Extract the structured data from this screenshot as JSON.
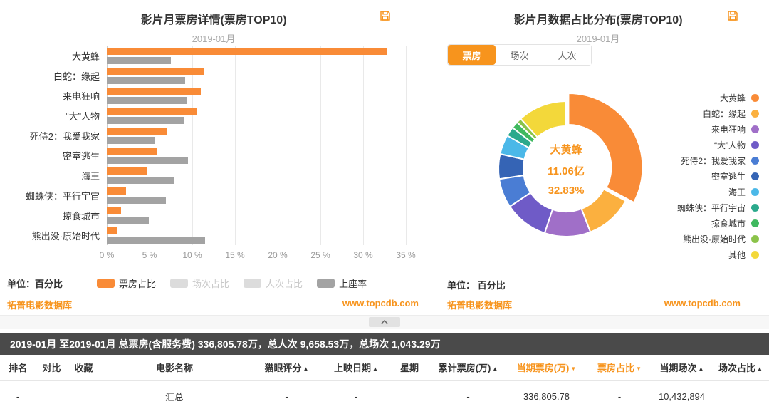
{
  "colors": {
    "accent_orange": "#F7941D",
    "bar_orange": "#F98B37",
    "bar_gray": "#A3A3A3",
    "summary_bar_bg": "#4A4A4A"
  },
  "chart_data": [
    {
      "type": "bar",
      "orientation": "horizontal",
      "title": "影片月票房详情(票房TOP10)",
      "subtitle": "2019-01月",
      "categories": [
        "大黄蜂",
        "白蛇：缘起",
        "来电狂响",
        "“大”人物",
        "死侍2：我爱我家",
        "密室逃生",
        "海王",
        "蜘蛛侠：平行宇宙",
        "掠食城市",
        "熊出没·原始时代"
      ],
      "series": [
        {
          "name": "票房占比",
          "color": "#F98B37",
          "values": [
            32.83,
            11.32,
            10.99,
            10.48,
            6.98,
            5.95,
            4.65,
            2.25,
            1.65,
            1.2
          ]
        },
        {
          "name": "上座率",
          "color": "#A3A3A3",
          "values": [
            7.5,
            9.2,
            9.3,
            9.0,
            5.6,
            9.5,
            7.9,
            6.9,
            4.9,
            11.5
          ]
        }
      ],
      "xlim": [
        0,
        35
      ],
      "xticks": [
        "0 %",
        "5 %",
        "10 %",
        "15 %",
        "20 %",
        "25 %",
        "30 %",
        "35 %"
      ],
      "grid": true,
      "legend_position": "bottom"
    },
    {
      "type": "pie",
      "donut": true,
      "title": "影片月数据占比分布(票房TOP10)",
      "subtitle": "2019-01月",
      "center_label": {
        "name": "大黄蜂",
        "value": "11.06亿",
        "percent": "32.83%"
      },
      "slices": [
        {
          "label": "大黄蜂",
          "value": 32.83,
          "color": "#F98B37",
          "selected": true
        },
        {
          "label": "白蛇：缘起",
          "value": 11.32,
          "color": "#FBB03F"
        },
        {
          "label": "来电狂响",
          "value": 10.99,
          "color": "#A06FC8"
        },
        {
          "label": "“大”人物",
          "value": 10.48,
          "color": "#6F5BC7"
        },
        {
          "label": "死侍2：我爱我家",
          "value": 6.98,
          "color": "#4A7DD4"
        },
        {
          "label": "密室逃生",
          "value": 5.95,
          "color": "#3564B5"
        },
        {
          "label": "海王",
          "value": 4.65,
          "color": "#4BB8E8"
        },
        {
          "label": "蜘蛛侠：平行宇宙",
          "value": 2.25,
          "color": "#2BA98C"
        },
        {
          "label": "掠食城市",
          "value": 1.65,
          "color": "#3FB95F"
        },
        {
          "label": "熊出没·原始时代",
          "value": 1.2,
          "color": "#8BC34A"
        },
        {
          "label": "其他",
          "value": 11.7,
          "color": "#F3D83A"
        }
      ],
      "legend_position": "right"
    }
  ],
  "left_panel": {
    "unit_label": "单位：百分比",
    "legend": [
      {
        "label": "票房占比",
        "color": "#F98B37",
        "active": true
      },
      {
        "label": "场次占比",
        "color": "#DCDCDC",
        "active": false
      },
      {
        "label": "人次占比",
        "color": "#DCDCDC",
        "active": false
      },
      {
        "label": "上座率",
        "color": "#A3A3A3",
        "active": true
      }
    ],
    "source": "拓普电影数据库",
    "website": "www.topcdb.com"
  },
  "right_panel": {
    "tabs": [
      {
        "label": "票房",
        "active": true
      },
      {
        "label": "场次",
        "active": false
      },
      {
        "label": "人次",
        "active": false
      }
    ],
    "unit_label": "单位： 百分比",
    "source": "拓普电影数据库",
    "website": "www.topcdb.com"
  },
  "icons": {
    "save": "floppy-disk",
    "collapse": "chevron-up"
  },
  "summary_bar": {
    "text": "2019-01月 至2019-01月 总票房(含服务费) 336,805.78万，总人次 9,658.53万，总场次 1,043.29万"
  },
  "table": {
    "columns": [
      {
        "label": "排名"
      },
      {
        "label": "对比"
      },
      {
        "label": "收藏"
      },
      {
        "label": "电影名称"
      },
      {
        "label": "猫眼评分",
        "sort": "asc"
      },
      {
        "label": "上映日期",
        "sort": "asc"
      },
      {
        "label": "星期"
      },
      {
        "label": "累计票房(万)",
        "sort": "asc"
      },
      {
        "label": "当期票房(万)",
        "sort": "desc",
        "active": true
      },
      {
        "label": "票房占比",
        "sort": "desc",
        "active": true
      },
      {
        "label": "当期场次",
        "sort": "asc"
      },
      {
        "label": "场次占比",
        "sort": "asc"
      }
    ],
    "rows": [
      [
        "-",
        "",
        "",
        "汇总",
        "-",
        "-",
        "",
        "-",
        "336,805.78",
        "-",
        "10,432,894",
        ""
      ]
    ]
  }
}
